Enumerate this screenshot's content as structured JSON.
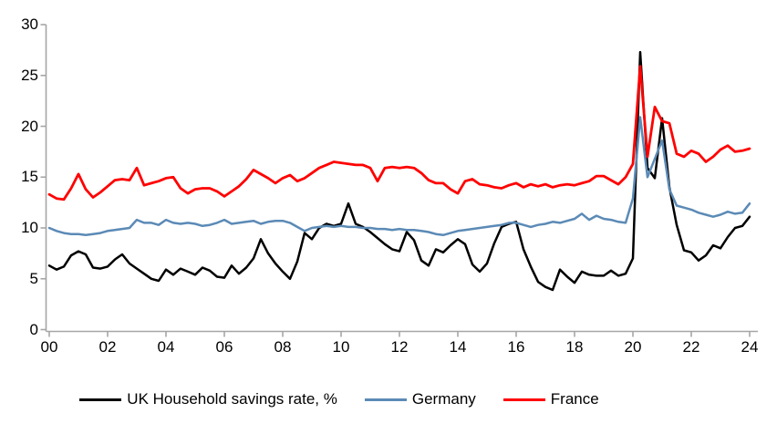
{
  "chart_data": {
    "type": "line",
    "title": "",
    "x_axis": {
      "label": "",
      "tick_labels": [
        "00",
        "02",
        "04",
        "06",
        "08",
        "10",
        "12",
        "14",
        "16",
        "18",
        "20",
        "22",
        "24"
      ],
      "start_year": 2000,
      "frequency": "quarterly",
      "range_years": [
        2000.0,
        2024.0
      ]
    },
    "y_axis": {
      "label": "",
      "tick_labels": [
        "0",
        "5",
        "10",
        "15",
        "20",
        "25",
        "30"
      ],
      "min": 0,
      "max": 30,
      "tick_step": 5
    },
    "grid": "off",
    "legend_position": "bottom",
    "series": [
      {
        "name": "UK Household savings rate, %",
        "color": "#000000",
        "values": [
          6.3,
          5.9,
          6.2,
          7.3,
          7.7,
          7.4,
          6.1,
          6.0,
          6.2,
          6.9,
          7.4,
          6.5,
          6.0,
          5.5,
          5.0,
          4.8,
          5.9,
          5.4,
          6.0,
          5.7,
          5.4,
          6.1,
          5.8,
          5.2,
          5.1,
          6.3,
          5.5,
          6.1,
          7.0,
          8.9,
          7.5,
          6.5,
          5.7,
          5.0,
          6.7,
          9.5,
          8.9,
          10.0,
          10.4,
          10.2,
          10.4,
          12.4,
          10.4,
          10.1,
          9.6,
          9.0,
          8.4,
          7.9,
          7.7,
          9.6,
          8.8,
          6.8,
          6.3,
          7.9,
          7.6,
          8.3,
          8.9,
          8.4,
          6.4,
          5.7,
          6.5,
          8.5,
          10.1,
          10.4,
          10.6,
          7.9,
          6.2,
          4.7,
          4.2,
          3.9,
          5.9,
          5.2,
          4.6,
          5.7,
          5.4,
          5.3,
          5.3,
          5.8,
          5.3,
          5.5,
          7.0,
          27.3,
          15.9,
          14.9,
          20.8,
          14.0,
          10.3,
          7.8,
          7.6,
          6.8,
          7.3,
          8.3,
          8.0,
          9.1,
          10.0,
          10.2,
          11.1
        ]
      },
      {
        "name": "Germany",
        "color": "#5B8AB6",
        "values": [
          10.0,
          9.7,
          9.5,
          9.4,
          9.4,
          9.3,
          9.4,
          9.5,
          9.7,
          9.8,
          9.9,
          10.0,
          10.8,
          10.5,
          10.5,
          10.3,
          10.8,
          10.5,
          10.4,
          10.5,
          10.4,
          10.2,
          10.3,
          10.5,
          10.8,
          10.4,
          10.5,
          10.6,
          10.7,
          10.4,
          10.6,
          10.7,
          10.7,
          10.5,
          10.1,
          9.7,
          10.0,
          10.1,
          10.2,
          10.1,
          10.2,
          10.1,
          10.1,
          10.0,
          10.0,
          9.9,
          9.9,
          9.8,
          9.9,
          9.8,
          9.8,
          9.7,
          9.6,
          9.4,
          9.3,
          9.5,
          9.7,
          9.8,
          9.9,
          10.0,
          10.1,
          10.2,
          10.3,
          10.5,
          10.5,
          10.3,
          10.1,
          10.3,
          10.4,
          10.6,
          10.5,
          10.7,
          10.9,
          11.4,
          10.8,
          11.2,
          10.9,
          10.8,
          10.6,
          10.5,
          12.9,
          20.9,
          15.0,
          16.8,
          18.6,
          13.8,
          12.2,
          12.0,
          11.8,
          11.5,
          11.3,
          11.1,
          11.3,
          11.6,
          11.4,
          11.5,
          12.4
        ]
      },
      {
        "name": "France",
        "color": "#FF0000",
        "values": [
          13.3,
          12.9,
          12.8,
          13.9,
          15.3,
          13.8,
          13.0,
          13.5,
          14.1,
          14.7,
          14.8,
          14.7,
          15.9,
          14.2,
          14.4,
          14.6,
          14.9,
          15.0,
          13.9,
          13.4,
          13.8,
          13.9,
          13.9,
          13.6,
          13.1,
          13.6,
          14.1,
          14.8,
          15.7,
          15.3,
          14.9,
          14.4,
          14.9,
          15.2,
          14.6,
          14.9,
          15.4,
          15.9,
          16.2,
          16.5,
          16.4,
          16.3,
          16.2,
          16.2,
          15.9,
          14.6,
          15.9,
          16.0,
          15.9,
          16.0,
          15.9,
          15.4,
          14.7,
          14.4,
          14.4,
          13.8,
          13.4,
          14.6,
          14.8,
          14.3,
          14.2,
          14.0,
          13.9,
          14.2,
          14.4,
          14.0,
          14.3,
          14.1,
          14.3,
          14.0,
          14.2,
          14.3,
          14.2,
          14.4,
          14.6,
          15.1,
          15.1,
          14.7,
          14.3,
          15.0,
          16.3,
          25.9,
          17.0,
          21.9,
          20.5,
          20.3,
          17.3,
          17.0,
          17.6,
          17.3,
          16.5,
          17.0,
          17.7,
          18.1,
          17.5,
          17.6,
          17.8
        ]
      }
    ]
  },
  "style": {
    "axis_color": "#A6A6A6",
    "background": "#FFFFFF"
  }
}
